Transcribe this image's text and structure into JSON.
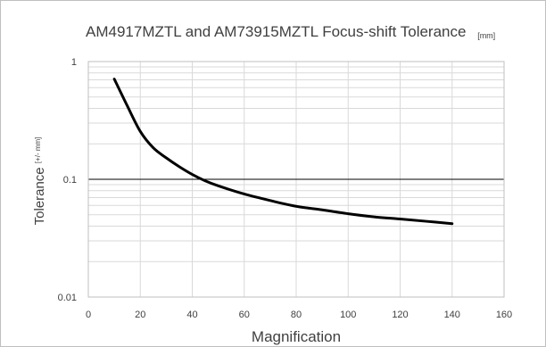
{
  "chart_data": {
    "type": "line",
    "title": "AM4917MZTL and AM73915MZTL Focus-shift Tolerance",
    "title_unit": "[mm]",
    "xlabel": "Magnification",
    "ylabel": "Tolerance",
    "ylabel_unit": "[+/- mm]",
    "xlim": [
      0,
      160
    ],
    "ylim": [
      0.01,
      1
    ],
    "y_scale": "log",
    "grid": true,
    "x_ticks": [
      "0",
      "20",
      "40",
      "60",
      "80",
      "100",
      "120",
      "140",
      "160"
    ],
    "y_ticks": [
      "0.01",
      "0.1",
      "1"
    ],
    "series": [
      {
        "x": [
          10,
          15,
          20,
          25,
          30,
          35,
          40,
          45,
          50,
          60,
          70,
          80,
          90,
          100,
          110,
          120,
          130,
          140
        ],
        "y": [
          0.71,
          0.42,
          0.255,
          0.185,
          0.152,
          0.128,
          0.11,
          0.097,
          0.088,
          0.075,
          0.066,
          0.059,
          0.055,
          0.051,
          0.048,
          0.046,
          0.044,
          0.042
        ]
      }
    ]
  }
}
